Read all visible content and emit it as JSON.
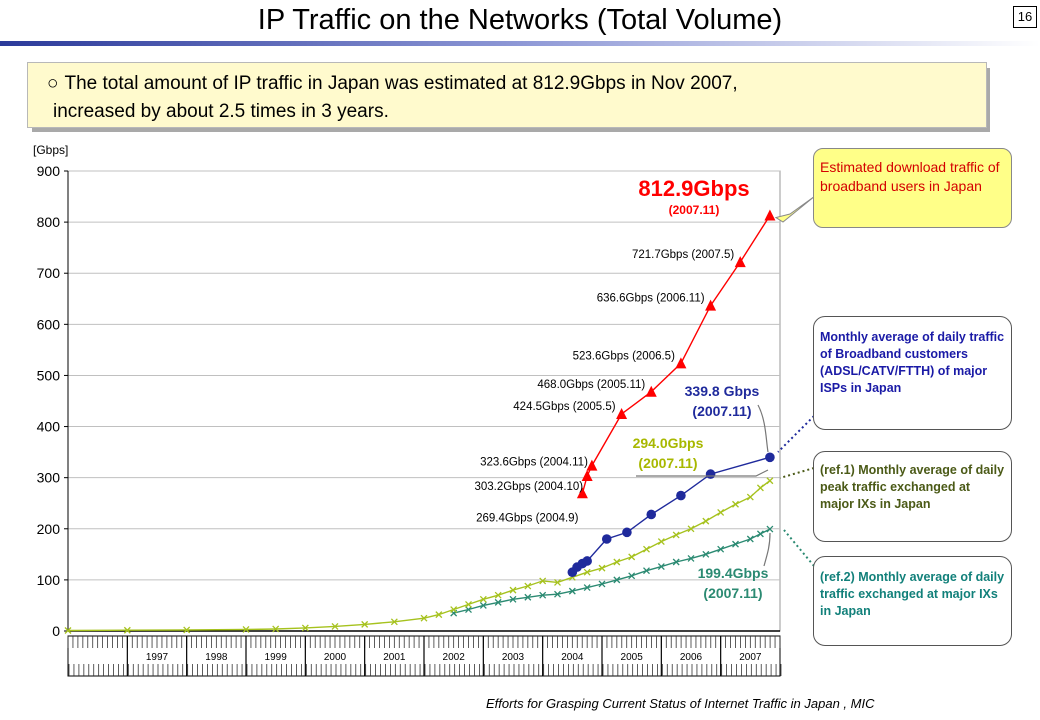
{
  "slide": {
    "title": "IP Traffic on the Networks (Total Volume)",
    "page_number": "16",
    "summary_bullet": "○",
    "summary_line1": "The total amount of IP traffic in Japan was estimated at 812.9Gbps in Nov 2007,",
    "summary_line2": "increased by about 2.5 times in 3 years.",
    "source": "Efforts for Grasping Current Status of Internet Traffic in Japan , MIC"
  },
  "notes": {
    "estimated": "Estimated download traffic of broadband users in Japan",
    "broadband": "Monthly average of daily traffic of Broadband customers (ADSL/CATV/FTTH) of major ISPs in Japan",
    "ref1": "(ref.1) Monthly average of daily peak traffic exchanged at major IXs in Japan",
    "ref2": "(ref.2) Monthly average of daily traffic exchanged at major IXs in Japan"
  },
  "colors": {
    "estimated": "#ff0000",
    "broadband": "#1f2a9c",
    "ref1": "#a6c21e",
    "ref2": "#2b8a72",
    "grid": "#c0c0c0"
  },
  "chart_data": {
    "type": "line",
    "title": "",
    "ylabel": "[Gbps]",
    "ylim": [
      0,
      900
    ],
    "yticks": [
      0,
      100,
      200,
      300,
      400,
      500,
      600,
      700,
      800,
      900
    ],
    "year_labels": [
      "1997",
      "1998",
      "1999",
      "2000",
      "2001",
      "2002",
      "2003",
      "2004",
      "2005",
      "2006",
      "2007"
    ],
    "grid": "horizontal",
    "series": [
      {
        "key": "estimated",
        "marker": "triangle",
        "points": [
          {
            "x": 2004.67,
            "y": 269.4,
            "label": "269.4Gbps (2004.9)"
          },
          {
            "x": 2004.75,
            "y": 303.2,
            "label": "303.2Gbps (2004.10)"
          },
          {
            "x": 2004.83,
            "y": 323.6,
            "label": "323.6Gbps (2004.11)"
          },
          {
            "x": 2005.33,
            "y": 424.5,
            "label": "424.5Gbps (2005.5)"
          },
          {
            "x": 2005.83,
            "y": 468.0,
            "label": "468.0Gbps (2005.11)"
          },
          {
            "x": 2006.33,
            "y": 523.6,
            "label": "523.6Gbps (2006.5)"
          },
          {
            "x": 2006.83,
            "y": 636.6,
            "label": "636.6Gbps (2006.11)"
          },
          {
            "x": 2007.33,
            "y": 721.7,
            "label": "721.7Gbps (2007.5)"
          },
          {
            "x": 2007.83,
            "y": 812.9,
            "label": ""
          }
        ],
        "highlight_value": "812.9Gbps",
        "highlight_date": "(2007.11)"
      },
      {
        "key": "broadband",
        "marker": "circle",
        "points": [
          {
            "x": 2004.5,
            "y": 115
          },
          {
            "x": 2004.58,
            "y": 125
          },
          {
            "x": 2004.67,
            "y": 132
          },
          {
            "x": 2004.75,
            "y": 137
          },
          {
            "x": 2005.08,
            "y": 180
          },
          {
            "x": 2005.42,
            "y": 193
          },
          {
            "x": 2005.83,
            "y": 228
          },
          {
            "x": 2006.33,
            "y": 265
          },
          {
            "x": 2006.83,
            "y": 307
          },
          {
            "x": 2007.83,
            "y": 339.8
          }
        ],
        "highlight_value": "339.8 Gbps",
        "highlight_date": "(2007.11)"
      },
      {
        "key": "ref1",
        "marker": "x",
        "points": [
          {
            "x": 1996.0,
            "y": 1
          },
          {
            "x": 1997.0,
            "y": 1.5
          },
          {
            "x": 1998.0,
            "y": 2
          },
          {
            "x": 1999.0,
            "y": 3
          },
          {
            "x": 1999.5,
            "y": 4
          },
          {
            "x": 2000.0,
            "y": 6
          },
          {
            "x": 2000.5,
            "y": 9
          },
          {
            "x": 2001.0,
            "y": 13
          },
          {
            "x": 2001.5,
            "y": 18
          },
          {
            "x": 2002.0,
            "y": 25
          },
          {
            "x": 2002.25,
            "y": 32
          },
          {
            "x": 2002.5,
            "y": 42
          },
          {
            "x": 2002.75,
            "y": 52
          },
          {
            "x": 2003.0,
            "y": 62
          },
          {
            "x": 2003.25,
            "y": 70
          },
          {
            "x": 2003.5,
            "y": 80
          },
          {
            "x": 2003.75,
            "y": 88
          },
          {
            "x": 2004.0,
            "y": 98
          },
          {
            "x": 2004.25,
            "y": 95
          },
          {
            "x": 2004.5,
            "y": 105
          },
          {
            "x": 2004.75,
            "y": 115
          },
          {
            "x": 2005.0,
            "y": 123
          },
          {
            "x": 2005.25,
            "y": 135
          },
          {
            "x": 2005.5,
            "y": 145
          },
          {
            "x": 2005.75,
            "y": 160
          },
          {
            "x": 2006.0,
            "y": 175
          },
          {
            "x": 2006.25,
            "y": 188
          },
          {
            "x": 2006.5,
            "y": 200
          },
          {
            "x": 2006.75,
            "y": 215
          },
          {
            "x": 2007.0,
            "y": 232
          },
          {
            "x": 2007.25,
            "y": 248
          },
          {
            "x": 2007.5,
            "y": 262
          },
          {
            "x": 2007.67,
            "y": 280
          },
          {
            "x": 2007.83,
            "y": 294.0
          }
        ],
        "highlight_value": "294.0Gbps",
        "highlight_date": "(2007.11)"
      },
      {
        "key": "ref2",
        "marker": "x",
        "points": [
          {
            "x": 2002.5,
            "y": 35
          },
          {
            "x": 2002.75,
            "y": 42
          },
          {
            "x": 2003.0,
            "y": 50
          },
          {
            "x": 2003.25,
            "y": 56
          },
          {
            "x": 2003.5,
            "y": 62
          },
          {
            "x": 2003.75,
            "y": 66
          },
          {
            "x": 2004.0,
            "y": 70
          },
          {
            "x": 2004.25,
            "y": 72
          },
          {
            "x": 2004.5,
            "y": 78
          },
          {
            "x": 2004.75,
            "y": 85
          },
          {
            "x": 2005.0,
            "y": 92
          },
          {
            "x": 2005.25,
            "y": 100
          },
          {
            "x": 2005.5,
            "y": 108
          },
          {
            "x": 2005.75,
            "y": 118
          },
          {
            "x": 2006.0,
            "y": 126
          },
          {
            "x": 2006.25,
            "y": 135
          },
          {
            "x": 2006.5,
            "y": 142
          },
          {
            "x": 2006.75,
            "y": 150
          },
          {
            "x": 2007.0,
            "y": 160
          },
          {
            "x": 2007.25,
            "y": 170
          },
          {
            "x": 2007.5,
            "y": 180
          },
          {
            "x": 2007.67,
            "y": 190
          },
          {
            "x": 2007.83,
            "y": 199.4
          }
        ],
        "highlight_value": "199.4Gbps",
        "highlight_date": "(2007.11)"
      }
    ]
  }
}
